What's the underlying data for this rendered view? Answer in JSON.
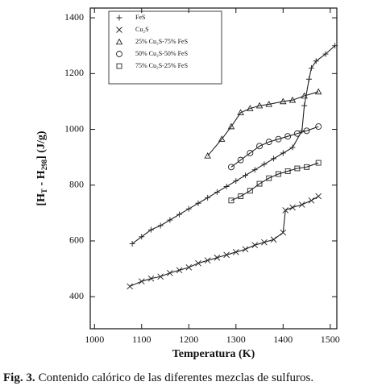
{
  "chart_data": {
    "type": "scatter-line",
    "xlabel": "Temperatura  (K)",
    "ylabel": [
      "[H",
      "T",
      " - H",
      "298",
      "]    (J/g)"
    ],
    "xlim": [
      991,
      1514
    ],
    "ylim": [
      285,
      1435
    ],
    "xticks": [
      1000,
      1100,
      1200,
      1300,
      1400,
      1500
    ],
    "yticks": [
      400,
      600,
      800,
      1000,
      1200,
      1400
    ],
    "legend": "upper left",
    "series": [
      {
        "name": "FeS",
        "marker": "plus",
        "color": "#222222",
        "x": [
          1080,
          1100,
          1120,
          1140,
          1160,
          1180,
          1200,
          1220,
          1240,
          1260,
          1280,
          1300,
          1320,
          1340,
          1360,
          1380,
          1400,
          1420,
          1440,
          1445,
          1455,
          1460,
          1470,
          1490,
          1510
        ],
        "values": [
          590,
          615,
          640,
          655,
          675,
          695,
          715,
          735,
          755,
          775,
          795,
          815,
          835,
          855,
          875,
          895,
          915,
          935,
          995,
          1085,
          1180,
          1220,
          1245,
          1270,
          1300
        ]
      },
      {
        "name": "Cu₂S",
        "marker": "cross",
        "color": "#222222",
        "x": [
          1075,
          1100,
          1120,
          1140,
          1160,
          1180,
          1200,
          1220,
          1240,
          1260,
          1280,
          1300,
          1320,
          1340,
          1360,
          1380,
          1400,
          1405,
          1420,
          1440,
          1460,
          1475
        ],
        "values": [
          437,
          455,
          465,
          472,
          485,
          495,
          505,
          520,
          530,
          540,
          550,
          560,
          570,
          585,
          595,
          605,
          630,
          710,
          720,
          730,
          745,
          760
        ]
      },
      {
        "name": "25% Cu₂S-75% FeS",
        "marker": "triangle",
        "color": "#222222",
        "x": [
          1240,
          1270,
          1290,
          1310,
          1330,
          1350,
          1370,
          1400,
          1420,
          1445,
          1475
        ],
        "values": [
          905,
          965,
          1010,
          1060,
          1075,
          1085,
          1090,
          1100,
          1105,
          1120,
          1135
        ]
      },
      {
        "name": "50% Cu₂S-50% FeS",
        "marker": "circle",
        "color": "#222222",
        "x": [
          1290,
          1310,
          1330,
          1350,
          1370,
          1390,
          1410,
          1430,
          1450,
          1475
        ],
        "values": [
          865,
          890,
          915,
          940,
          955,
          965,
          975,
          985,
          995,
          1010
        ]
      },
      {
        "name": "75% Cu₂S-25% FeS",
        "marker": "square",
        "color": "#222222",
        "x": [
          1290,
          1310,
          1330,
          1350,
          1370,
          1390,
          1410,
          1430,
          1450,
          1475
        ],
        "values": [
          745,
          760,
          780,
          805,
          825,
          840,
          850,
          860,
          865,
          880
        ]
      }
    ]
  },
  "caption": {
    "label": "Fig. 3.",
    "text": "Contenido calórico de las diferentes mezclas de sulfuros."
  }
}
